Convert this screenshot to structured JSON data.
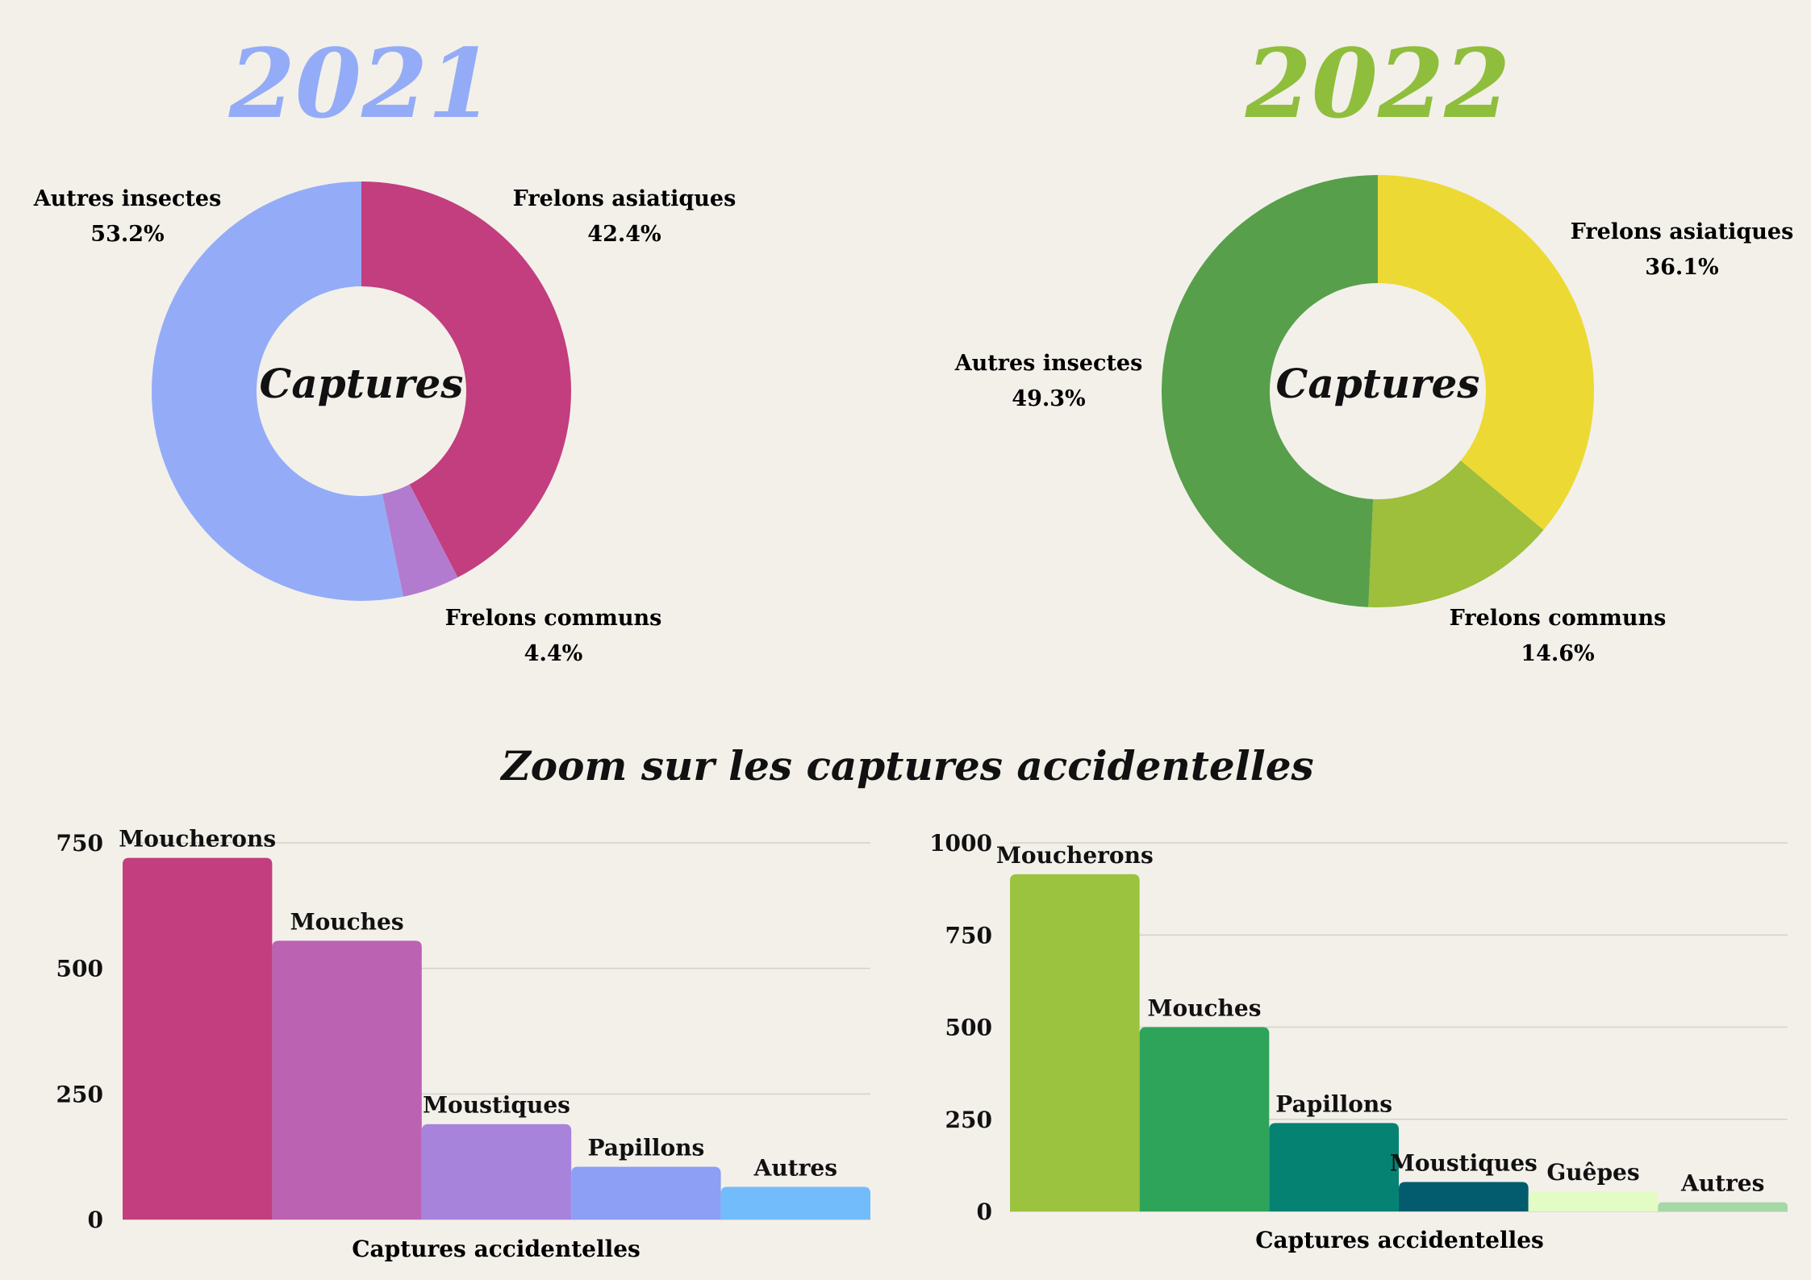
{
  "main_title": "Zoom sur les captures accidentelles",
  "colors": {
    "background": "#f3f0ea",
    "year_2021": "#94acf7",
    "year_2022": "#8fbe3c"
  },
  "chart_data": [
    {
      "type": "pie",
      "title": "2021",
      "center_label": "Captures",
      "slices": [
        {
          "label": "Frelons asiatiques",
          "value": 42.4,
          "display": "42.4%",
          "color": "#c23e7e"
        },
        {
          "label": "Frelons communs",
          "value": 4.4,
          "display": "4.4%",
          "color": "#b37bd0"
        },
        {
          "label": "Autres insectes",
          "value": 53.2,
          "display": "53.2%",
          "color": "#94acf7"
        }
      ]
    },
    {
      "type": "pie",
      "title": "2022",
      "center_label": "Captures",
      "slices": [
        {
          "label": "Frelons asiatiques",
          "value": 36.1,
          "display": "36.1%",
          "color": "#ecd934"
        },
        {
          "label": "Frelons communs",
          "value": 14.6,
          "display": "14.6%",
          "color": "#9dbf3b"
        },
        {
          "label": "Autres insectes",
          "value": 49.3,
          "display": "49.3%",
          "color": "#579f4a"
        }
      ]
    },
    {
      "type": "bar",
      "xlabel": "Captures accidentelles",
      "ylim": [
        0,
        750
      ],
      "yticks": [
        0,
        250,
        500,
        750
      ],
      "grid": true,
      "categories": [
        "Moucherons",
        "Mouches",
        "Moustiques",
        "Papillons",
        "Autres"
      ],
      "values": [
        720,
        555,
        190,
        105,
        65
      ],
      "colors": [
        "#c23e7e",
        "#bc62b3",
        "#a883dc",
        "#8c9ff5",
        "#73bcfb"
      ]
    },
    {
      "type": "bar",
      "xlabel": "Captures accidentelles",
      "ylim": [
        0,
        1000
      ],
      "yticks": [
        0,
        250,
        500,
        750,
        1000
      ],
      "grid": true,
      "categories": [
        "Moucherons",
        "Mouches",
        "Papillons",
        "Moustiques",
        "Guêpes",
        "Autres"
      ],
      "values": [
        915,
        500,
        240,
        80,
        55,
        25
      ],
      "colors": [
        "#9bc33f",
        "#2ea35a",
        "#068272",
        "#035c6d",
        "#e3fbc4",
        "#a6d8a6"
      ]
    }
  ]
}
